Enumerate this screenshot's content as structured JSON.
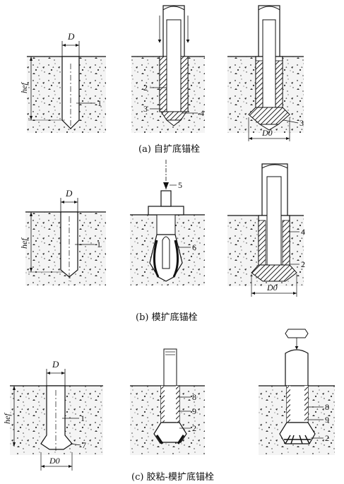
{
  "captions": {
    "a": "(a) 自扩底锚栓",
    "b": "(b) 模扩底锚栓",
    "c": "(c) 胶粘-模扩底锚栓"
  },
  "dims": {
    "D": "D",
    "D0": "D0",
    "hef": "hef"
  },
  "callouts": {
    "a1": [
      "1"
    ],
    "a2": [
      "2",
      "3",
      "4"
    ],
    "a3": [
      "3"
    ],
    "b1": [
      "1"
    ],
    "b2": [
      "5",
      "6"
    ],
    "b3": [
      "4",
      "2"
    ],
    "c1": [
      "1",
      "7"
    ],
    "c2": [
      "8",
      "9",
      "2"
    ],
    "c3": [
      "8",
      "9",
      "2"
    ]
  }
}
